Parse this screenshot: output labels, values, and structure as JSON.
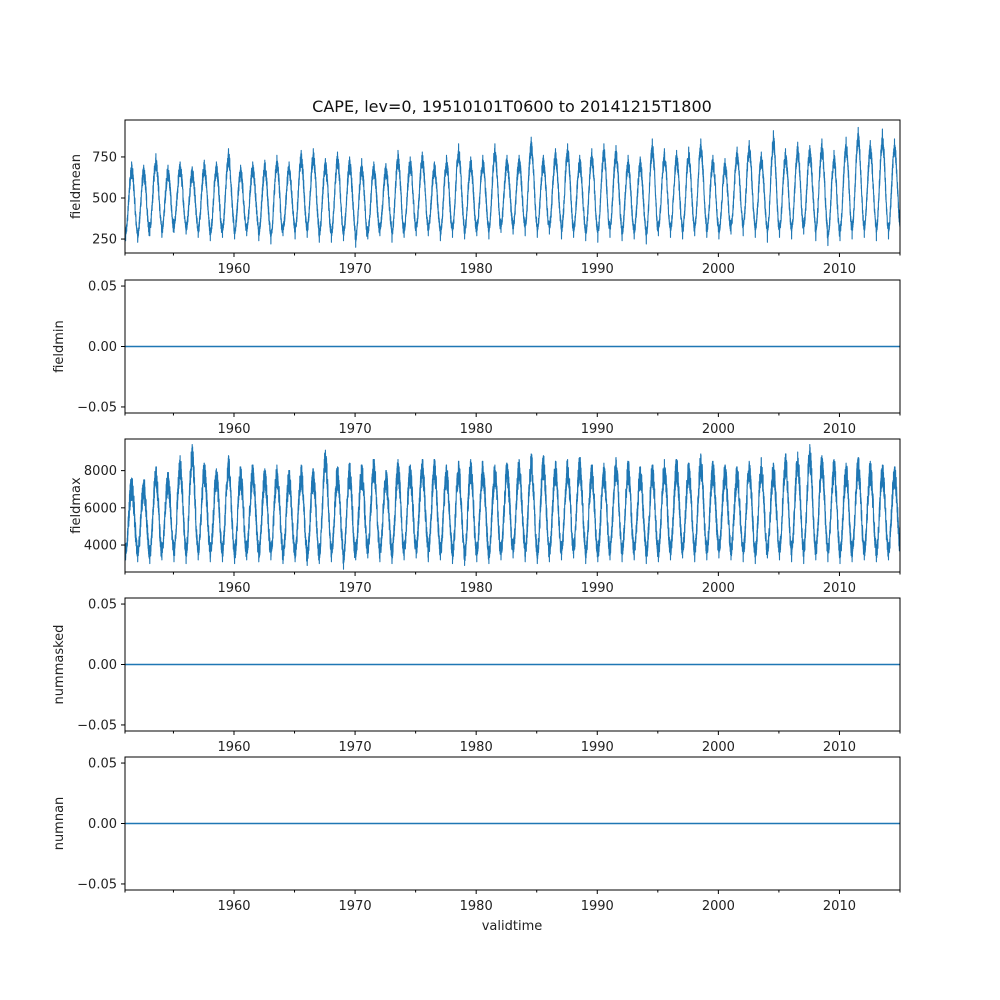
{
  "chart_data": {
    "type": "line",
    "title": "CAPE, lev=0, 19510101T0600 to 20141215T1800",
    "xlabel": "validtime",
    "xlim": [
      1951.0,
      2015.0
    ],
    "x_ticks": [
      1960,
      1970,
      1980,
      1990,
      2000,
      2010
    ],
    "x_minor_ticks": [
      1955,
      1965,
      1975,
      1985,
      1995,
      2005
    ],
    "series_color": "#1f77b4",
    "panels": [
      {
        "name": "fieldmean",
        "ylabel": "fieldmean",
        "ylim": [
          165,
          975
        ],
        "yticks": [
          250,
          500,
          750
        ],
        "ytick_labels": [
          "250",
          "500",
          "750"
        ],
        "kind": "seasonal",
        "mean": 500,
        "amplitude": 190,
        "noise": 45,
        "peaks_per_year": [
          720,
          700,
          770,
          700,
          720,
          690,
          730,
          720,
          800,
          700,
          720,
          730,
          760,
          720,
          790,
          800,
          740,
          780,
          750,
          740,
          720,
          710,
          790,
          750,
          780,
          720,
          760,
          830,
          750,
          760,
          830,
          760,
          760,
          870,
          760,
          800,
          830,
          760,
          800,
          830,
          820,
          760,
          750,
          860,
          800,
          790,
          810,
          860,
          760,
          740,
          810,
          850,
          780,
          910,
          800,
          840,
          820,
          860,
          790,
          870,
          930,
          850,
          920,
          860
        ],
        "troughs_per_year": [
          240,
          230,
          270,
          260,
          290,
          280,
          260,
          240,
          260,
          250,
          270,
          240,
          220,
          270,
          250,
          260,
          230,
          230,
          240,
          200,
          250,
          270,
          230,
          260,
          270,
          270,
          240,
          260,
          250,
          270,
          250,
          290,
          280,
          270,
          260,
          280,
          250,
          260,
          240,
          230,
          260,
          240,
          250,
          220,
          270,
          260,
          250,
          270,
          260,
          250,
          280,
          270,
          260,
          230,
          260,
          250,
          280,
          240,
          210,
          240,
          250,
          260,
          240,
          250
        ]
      },
      {
        "name": "fieldmin",
        "ylabel": "fieldmin",
        "ylim": [
          -0.055,
          0.055
        ],
        "yticks": [
          -0.05,
          0,
          0.05
        ],
        "ytick_labels": [
          "−0.05",
          "0.00",
          "0.05"
        ],
        "kind": "constant",
        "value": 0.0
      },
      {
        "name": "fieldmax",
        "ylabel": "fieldmax",
        "ylim": [
          2550,
          9700
        ],
        "yticks": [
          4000,
          6000,
          8000
        ],
        "ytick_labels": [
          "4000",
          "6000",
          "8000"
        ],
        "kind": "seasonal",
        "mean": 4600,
        "amplitude": 1400,
        "noise": 700,
        "peaks_per_year": [
          7600,
          7500,
          8200,
          7900,
          8800,
          9400,
          8400,
          8100,
          8800,
          8200,
          8300,
          8100,
          8300,
          8000,
          8300,
          8100,
          9100,
          8200,
          8400,
          8300,
          8600,
          8000,
          8600,
          8300,
          8600,
          8600,
          8300,
          8500,
          8600,
          8500,
          8300,
          8400,
          8600,
          8900,
          8800,
          8500,
          8600,
          8700,
          8300,
          8400,
          8700,
          8500,
          8200,
          8300,
          8600,
          8600,
          8400,
          8900,
          8500,
          8300,
          8200,
          8500,
          8700,
          8400,
          8900,
          9000,
          9400,
          8800,
          8600,
          8400,
          8700,
          8500,
          8300,
          8200
        ],
        "troughs_per_year": [
          3200,
          3100,
          3000,
          3200,
          3100,
          3000,
          3200,
          3100,
          3100,
          3000,
          3200,
          3100,
          3200,
          3000,
          3100,
          2900,
          3000,
          3100,
          2700,
          3200,
          3300,
          3100,
          3000,
          3200,
          3300,
          3100,
          3200,
          3000,
          2900,
          3100,
          3000,
          3200,
          3300,
          3100,
          3000,
          3100,
          3200,
          3300,
          3000,
          3100,
          3200,
          3100,
          3200,
          3000,
          3100,
          3200,
          3300,
          3100,
          3200,
          3300,
          3200,
          3100,
          3000,
          3300,
          3200,
          3100,
          3000,
          3200,
          3100,
          3000,
          3100,
          3200,
          3100,
          3200
        ]
      },
      {
        "name": "nummasked",
        "ylabel": "nummasked",
        "ylim": [
          -0.055,
          0.055
        ],
        "yticks": [
          -0.05,
          0,
          0.05
        ],
        "ytick_labels": [
          "−0.05",
          "0.00",
          "0.05"
        ],
        "kind": "constant",
        "value": 0.0
      },
      {
        "name": "numnan",
        "ylabel": "numnan",
        "ylim": [
          -0.055,
          0.055
        ],
        "yticks": [
          -0.05,
          0,
          0.05
        ],
        "ytick_labels": [
          "−0.05",
          "0.00",
          "0.05"
        ],
        "kind": "constant",
        "value": 0.0
      }
    ]
  }
}
